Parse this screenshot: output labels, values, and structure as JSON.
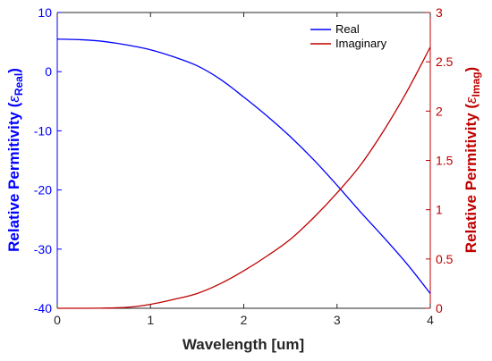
{
  "chart_data": {
    "type": "line",
    "title": "",
    "xlabel": "Wavelength [um]",
    "ylabel_left": "Relative Permitivity (",
    "ylabel_left_symbol": "ε",
    "ylabel_left_sub": "Real",
    "ylabel_left_close": ")",
    "ylabel_right": "Relative Permitivity (",
    "ylabel_right_symbol": "ε",
    "ylabel_right_sub": "Imag",
    "ylabel_right_close": ")",
    "xlim": [
      0,
      4
    ],
    "ylim_left": [
      -40,
      10
    ],
    "ylim_right": [
      0,
      3
    ],
    "x_ticks": [
      "0",
      "1",
      "2",
      "3",
      "4"
    ],
    "y_left_ticks": [
      "-40",
      "-30",
      "-20",
      "-10",
      "0",
      "10"
    ],
    "y_right_ticks": [
      "0",
      "0.5",
      "1",
      "1.5",
      "2",
      "2.5",
      "3"
    ],
    "grid": false,
    "legend_position": "top-right",
    "x": [
      0,
      0.25,
      0.5,
      0.75,
      1.0,
      1.25,
      1.5,
      1.75,
      2.0,
      2.25,
      2.5,
      2.75,
      3.0,
      3.25,
      3.5,
      3.75,
      4.0
    ],
    "series": [
      {
        "name": "Real",
        "axis": "left",
        "color": "#0000ff",
        "values": [
          5.5,
          5.4,
          5.1,
          4.5,
          3.7,
          2.5,
          1.0,
          -1.3,
          -4.3,
          -7.5,
          -11.0,
          -14.9,
          -19.2,
          -23.7,
          -28.0,
          -32.5,
          -37.5
        ]
      },
      {
        "name": "Imaginary",
        "axis": "right",
        "color": "#c00000",
        "values": [
          0,
          0,
          0.002,
          0.01,
          0.04,
          0.09,
          0.15,
          0.25,
          0.38,
          0.53,
          0.7,
          0.92,
          1.17,
          1.45,
          1.8,
          2.2,
          2.65
        ]
      }
    ]
  },
  "colors": {
    "left_axis": "#0000ff",
    "right_axis": "#c00000",
    "x_axis": "#262626"
  }
}
